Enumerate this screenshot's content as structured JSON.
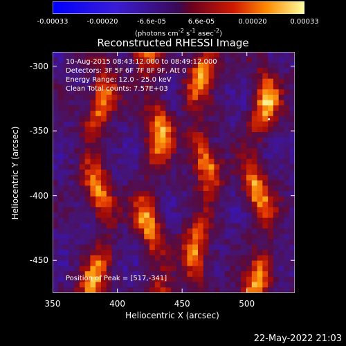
{
  "colorbar": {
    "ticks": [
      "-0.00033",
      "-0.00020",
      "-6.6e-05",
      "6.6e-05",
      "0.00020",
      "0.00033"
    ],
    "units_html": "(photons cm<sup>-2</sup> s<sup>-1</sup> asec<sup>-2</sup>)",
    "range": [
      -0.00033,
      0.00033
    ]
  },
  "chart_data": {
    "type": "heatmap",
    "title": "Reconstructed RHESSI Image",
    "xlabel": "Heliocentric X (arcsec)",
    "ylabel": "Heliocentric Y (arcsec)",
    "xlim": [
      350,
      537
    ],
    "ylim": [
      -475,
      -289
    ],
    "x_ticks": [
      "350",
      "400",
      "450",
      "500"
    ],
    "y_ticks": [
      "-300",
      "-350",
      "-400",
      "-450"
    ],
    "peak": {
      "x": 517,
      "y": -341
    },
    "bright_ridges_x": [
      385,
      428,
      465,
      510
    ],
    "annotations": {
      "time": "10-Aug-2015 08:43:12.000 to 08:49:12.000",
      "detectors": "Detectors: 3F 5F 6F 7F 8F 9F, Att 0",
      "energy": "Energy Range: 12.0 - 25.0 keV",
      "counts": "Clean     Total counts: 7.57E+03",
      "peak_label": "Position of Peak = [517,-341]"
    }
  },
  "footer": {
    "timestamp": "22-May-2022 21:03"
  },
  "colors": {
    "background": "#000000",
    "axis": "#ffffff"
  }
}
